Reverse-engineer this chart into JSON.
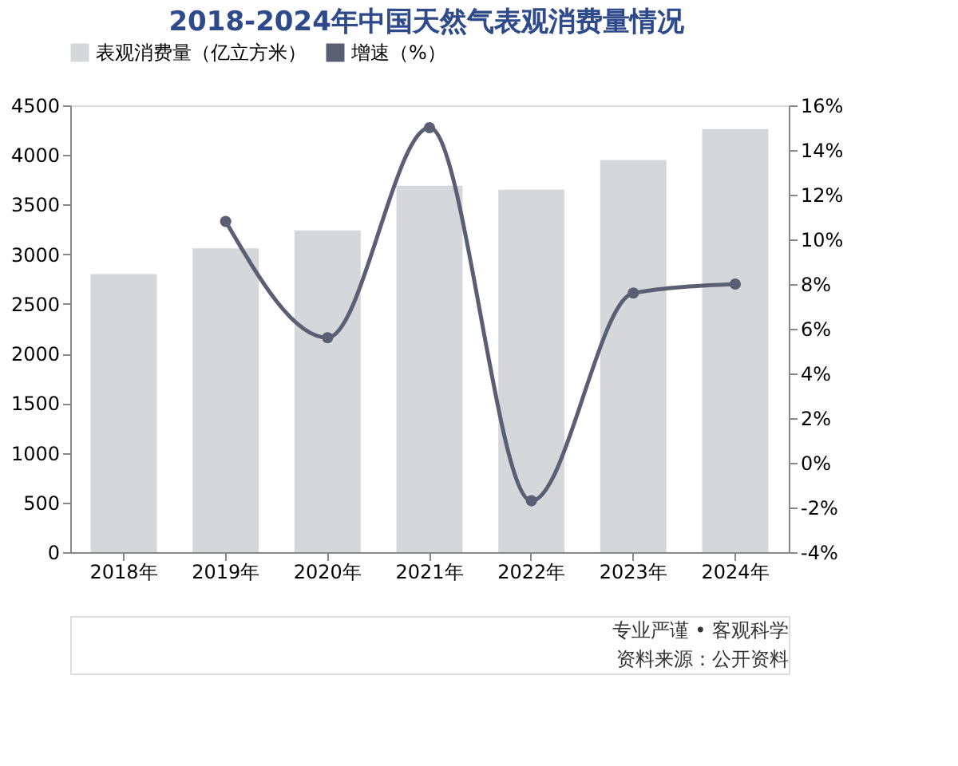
{
  "chart_data": {
    "type": "bar",
    "title": "2018-2024年中国天然气表观消费量情况",
    "categories": [
      "2018年",
      "2019年",
      "2020年",
      "2021年",
      "2022年",
      "2023年",
      "2024年"
    ],
    "series": [
      {
        "name": "表观消费量（亿立方米）",
        "color": "#d5d7da",
        "values": [
          2800,
          3060,
          3240,
          3690,
          3650,
          3950,
          4260
        ]
      },
      {
        "name": "增速（%）",
        "type": "line",
        "axis": "y2",
        "color": "#5a5f73",
        "marker": "circle",
        "values": [
          null,
          10.8,
          5.6,
          15.0,
          -1.7,
          7.6,
          8.0
        ]
      }
    ],
    "ylim": [
      0,
      4500
    ],
    "yticks": [
      0,
      500,
      1000,
      1500,
      2000,
      2500,
      3000,
      3500,
      4000,
      4500
    ],
    "y2lim": [
      -4,
      16
    ],
    "y2ticks": [
      {
        "value": -4,
        "label": "-4%"
      },
      {
        "value": -2,
        "label": "-2%"
      },
      {
        "value": 0,
        "label": "0%"
      },
      {
        "value": 2,
        "label": "2%"
      },
      {
        "value": 4,
        "label": "4%"
      },
      {
        "value": 6,
        "label": "6%"
      },
      {
        "value": 8,
        "label": "8%"
      },
      {
        "value": 10,
        "label": "10%"
      },
      {
        "value": 12,
        "label": "12%"
      },
      {
        "value": 14,
        "label": "14%"
      },
      {
        "value": 16,
        "label": "16%"
      }
    ],
    "grid": false,
    "legend": "top",
    "annotations": [
      "专业严谨 • 客观科学",
      "资料来源：公开资料"
    ]
  }
}
